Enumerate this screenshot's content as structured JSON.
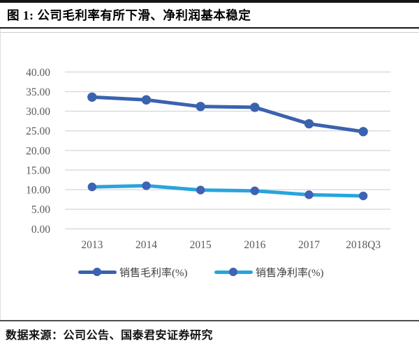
{
  "figure": {
    "title": "图 1: 公司毛利率有所下滑、净利润基本稳定",
    "source": "数据来源：公司公告、国泰君安证券研究"
  },
  "chart_data": {
    "type": "line",
    "title": "图 1: 公司毛利率有所下滑、净利润基本稳定",
    "categories": [
      "2013",
      "2014",
      "2015",
      "2016",
      "2017",
      "2018Q3"
    ],
    "series": [
      {
        "name": "销售毛利率(%)",
        "values": [
          33.6,
          32.9,
          31.2,
          31.0,
          26.8,
          24.8
        ],
        "line_color": "#3a62ae",
        "marker_color": "#3a62ae"
      },
      {
        "name": "销售净利率(%)",
        "values": [
          10.7,
          11.0,
          9.9,
          9.7,
          8.7,
          8.4
        ],
        "line_color": "#28a4de",
        "marker_color": "#3e62b4"
      }
    ],
    "ylim": [
      0,
      40
    ],
    "y_ticks": [
      40,
      35,
      30,
      25,
      20,
      15,
      10,
      5,
      0
    ],
    "y_tick_labels": [
      "40.00",
      "35.00",
      "30.00",
      "25.00",
      "20.00",
      "15.00",
      "10.00",
      "5.00",
      "0.00"
    ],
    "xlabel": "",
    "ylabel": "",
    "grid": "horizontal",
    "gridline_color": "#d9d9d9",
    "axis_text_color": "#595959",
    "legend_position": "bottom"
  }
}
